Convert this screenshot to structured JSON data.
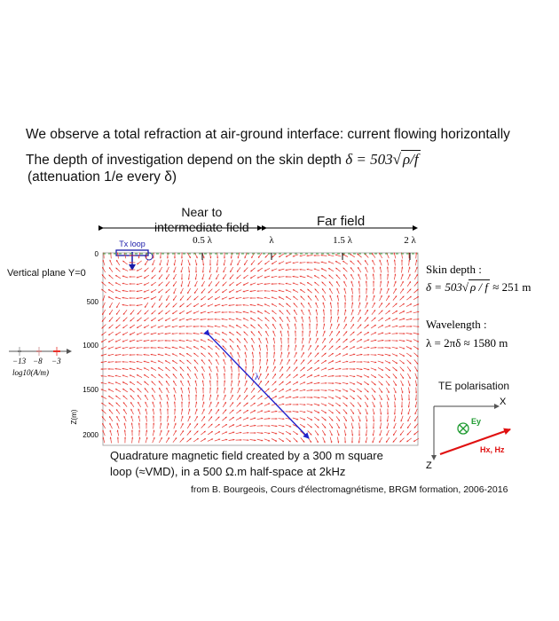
{
  "text": {
    "line1": "We observe a total refraction at air-ground interface: current flowing horizontally",
    "line2_prefix": "The depth of investigation depend on the skin depth",
    "line2_formula_lhs": "δ = 503",
    "line2_formula_rad": "ρ/f",
    "line3": "(attenuation 1/e every δ)",
    "near_line1": "Near to",
    "near_line2": "intermediate field",
    "far": "Far field",
    "vertical_plane": "Vertical plane Y=0",
    "skin_label": "Skin depth :",
    "skin_formula_lhs": "δ = 503",
    "skin_formula_rad": "ρ / f",
    "skin_formula_rhs": "≈ 251 m",
    "wave_label": "Wavelength :",
    "wave_formula": "λ = 2πδ ≈ 1580 m",
    "te": "TE  polarisation",
    "caption1": "Quadrature magnetic field created by a 300 m square",
    "caption2": "loop (≈VMD), in a 500 Ω.m half-space at 2kHz",
    "credit": "from B. Bourgeois, Cours d'électromagnétisme,  BRGM formation, 2006-2016"
  },
  "plot": {
    "tx_label": "Tx loop",
    "top_ticks": [
      "0.5 λ",
      "λ",
      "1.5 λ",
      "2 λ"
    ],
    "depth_ticks": [
      "0",
      "500",
      "1000",
      "1500",
      "2000"
    ],
    "z_axis_label": "Z(m)",
    "lambda_label": "λ",
    "arrow_color": "#e8312a",
    "lambda_line_color": "#2222cc"
  },
  "legend": {
    "ticks": [
      "−13",
      "−8",
      "−3"
    ],
    "label": "log10(A/m)"
  },
  "axes": {
    "x": "X",
    "z": "Z",
    "ey": "Ey",
    "h": "Hx, Hz",
    "ey_color": "#1f9b31",
    "h_color": "#e01010"
  }
}
